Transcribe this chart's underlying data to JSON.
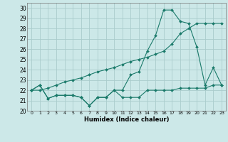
{
  "title": "",
  "xlabel": "Humidex (Indice chaleur)",
  "ylabel": "",
  "bg_color": "#cce8e8",
  "grid_color": "#aacccc",
  "line_color": "#1a7a6a",
  "xlim": [
    -0.5,
    23.5
  ],
  "ylim": [
    20,
    30.5
  ],
  "xticks": [
    0,
    1,
    2,
    3,
    4,
    5,
    6,
    7,
    8,
    9,
    10,
    11,
    12,
    13,
    14,
    15,
    16,
    17,
    18,
    19,
    20,
    21,
    22,
    23
  ],
  "yticks": [
    20,
    21,
    22,
    23,
    24,
    25,
    26,
    27,
    28,
    29,
    30
  ],
  "series": [
    [
      22.0,
      22.5,
      21.2,
      21.5,
      21.5,
      21.5,
      21.3,
      20.5,
      21.3,
      21.3,
      22.0,
      21.3,
      21.3,
      21.3,
      22.0,
      22.0,
      22.0,
      22.0,
      22.2,
      22.2,
      22.2,
      22.2,
      22.5,
      22.5
    ],
    [
      22.0,
      22.0,
      22.2,
      22.5,
      22.8,
      23.0,
      23.2,
      23.5,
      23.8,
      24.0,
      24.2,
      24.5,
      24.8,
      25.0,
      25.2,
      25.5,
      25.8,
      26.5,
      27.5,
      28.0,
      28.5,
      28.5,
      28.5,
      28.5
    ],
    [
      22.0,
      22.5,
      21.2,
      21.5,
      21.5,
      21.5,
      21.3,
      20.5,
      21.3,
      21.3,
      22.0,
      22.0,
      23.5,
      23.8,
      25.8,
      27.3,
      29.8,
      29.8,
      28.7,
      28.5,
      26.2,
      22.5,
      24.2,
      22.5
    ]
  ]
}
